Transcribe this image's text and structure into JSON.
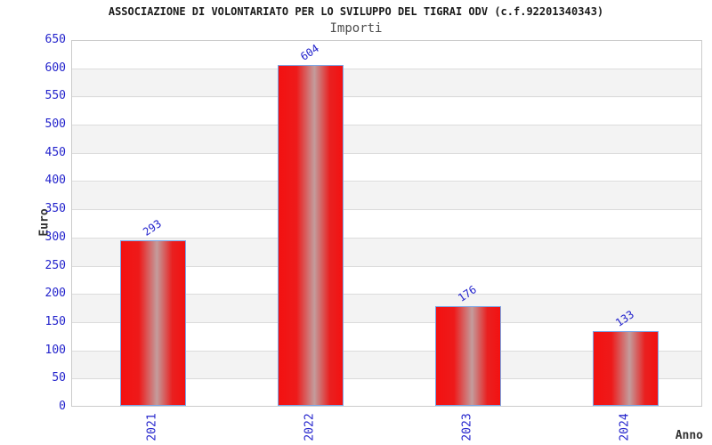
{
  "header": {
    "title": "ASSOCIAZIONE DI VOLONTARIATO PER LO SVILUPPO DEL TIGRAI ODV (c.f.92201340343)",
    "subtitle": "Importi"
  },
  "chart_data": {
    "type": "bar",
    "title": "ASSOCIAZIONE DI VOLONTARIATO PER LO SVILUPPO DEL TIGRAI ODV (c.f.92201340343)",
    "subtitle": "Importi",
    "categories": [
      "2021",
      "2022",
      "2023",
      "2024"
    ],
    "values": [
      293,
      604,
      176,
      133
    ],
    "xlabel": "Anno",
    "ylabel": "Euro",
    "ylim": [
      0,
      650
    ],
    "ytick_step": 50,
    "grid": "horizontal gridlines every 50, alternating white/gray bands",
    "legend": "none",
    "value_labels_rotated": true,
    "xtick_labels_rotated_90": true
  },
  "colors": {
    "tick_label_blue": "#2323cc",
    "bar_red": "#f31111",
    "bar_gradient_mid": "#c39c9c",
    "bar_border_blue": "#7aa7e8",
    "band_gray": "#f3f3f3",
    "gridline_gray": "#dcdcdc",
    "frame_gray": "#cccccc",
    "axis_title_dark": "#333333",
    "subtitle_gray": "#4d4d4d"
  }
}
